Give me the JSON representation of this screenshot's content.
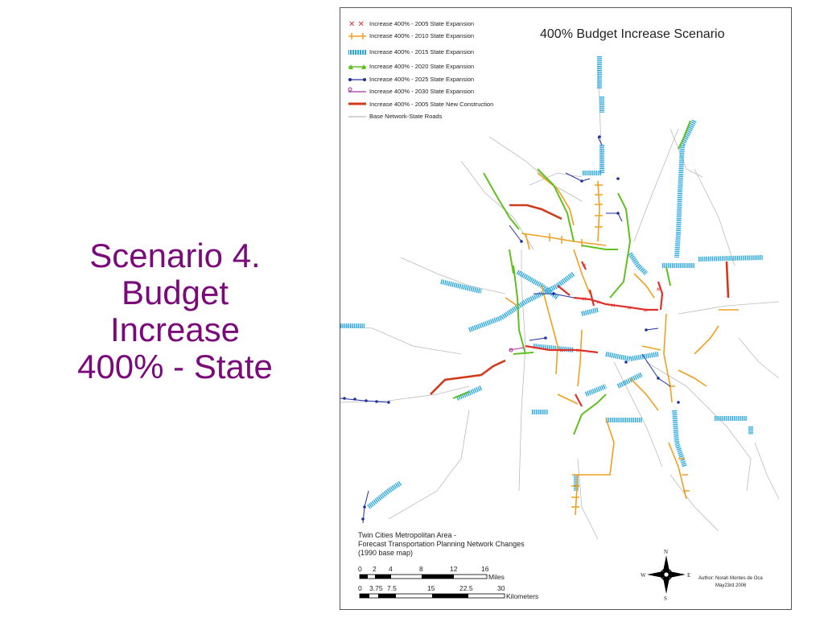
{
  "slide": {
    "title_lines": [
      "Scenario 4.",
      "Budget",
      "Increase",
      "400% - State"
    ]
  },
  "map": {
    "title": "400% Budget Increase Scenario",
    "legend": [
      {
        "label": "Increase 400% - 2005 State Expansion",
        "color": "#e0302a",
        "style": "x"
      },
      {
        "label": "Increase 400% - 2010 State Expansion",
        "color": "#f0a020",
        "style": "plus"
      },
      {
        "label": "Increase 400% - 2015 State Expansion",
        "color": "#2aa8e0",
        "style": "bars"
      },
      {
        "label": "Increase 400% - 2020 State Expansion",
        "color": "#60c020",
        "style": "triangle"
      },
      {
        "label": "Increase 400% - 2025 State Expansion",
        "color": "#2030a0",
        "style": "dot"
      },
      {
        "label": "Increase 400% - 2030 State Expansion",
        "color": "#a030a0",
        "style": "circle"
      },
      {
        "label": "Increase 400% - 2005 State New Construction",
        "color": "#d03a1a",
        "style": "thick"
      },
      {
        "label": "Base Network-State Roads",
        "color": "#aaaaaa",
        "style": "thin"
      }
    ],
    "notes": [
      "Twin Cities Metropolitan Area -",
      "Forecast Transportation Planning Network Changes",
      "(1990 base map)"
    ],
    "scale_miles": {
      "ticks": [
        "0",
        "2",
        "4",
        "8",
        "12",
        "16"
      ],
      "unit": "Miles"
    },
    "scale_km": {
      "ticks": [
        "0",
        "3.75",
        "7.5",
        "15",
        "22.5",
        "30"
      ],
      "unit": "Kilometers"
    },
    "compass": {
      "n": "N",
      "s": "S",
      "e": "E",
      "w": "W"
    },
    "author": [
      "Author: Norah Montes de Oca",
      "May23rd 2006"
    ]
  }
}
